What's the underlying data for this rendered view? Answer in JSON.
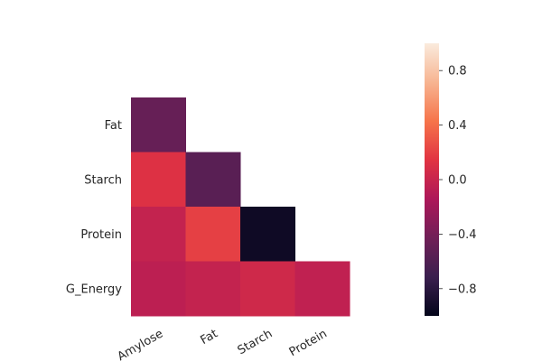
{
  "chart_data": {
    "type": "heatmap",
    "mask": "upper-triangle",
    "x_categories": [
      "Amylose",
      "Fat",
      "Starch",
      "Protein"
    ],
    "y_categories": [
      "Fat",
      "Starch",
      "Protein",
      "G_Energy"
    ],
    "cells": [
      {
        "x": "Amylose",
        "y": "Fat",
        "value": -0.48
      },
      {
        "x": "Amylose",
        "y": "Starch",
        "value": 0.12
      },
      {
        "x": "Fat",
        "y": "Starch",
        "value": -0.55
      },
      {
        "x": "Amylose",
        "y": "Protein",
        "value": -0.02
      },
      {
        "x": "Fat",
        "y": "Protein",
        "value": 0.2
      },
      {
        "x": "Starch",
        "y": "Protein",
        "value": -0.94
      },
      {
        "x": "Amylose",
        "y": "G_Energy",
        "value": -0.06
      },
      {
        "x": "Fat",
        "y": "G_Energy",
        "value": -0.02
      },
      {
        "x": "Starch",
        "y": "G_Energy",
        "value": 0.04
      },
      {
        "x": "Protein",
        "y": "G_Energy",
        "value": -0.04
      }
    ],
    "colorbar": {
      "min": -1,
      "max": 1,
      "ticks": [
        {
          "value": 0.8,
          "label": "0.8"
        },
        {
          "value": 0.4,
          "label": "0.4"
        },
        {
          "value": 0.0,
          "label": "0.0"
        },
        {
          "value": -0.4,
          "label": "−0.4"
        },
        {
          "value": -0.8,
          "label": "−0.8"
        }
      ],
      "colormap_stops": [
        "#03051a",
        "#3b1f4f",
        "#701f57",
        "#ad1759",
        "#e13342",
        "#f6744a",
        "#f7b491",
        "#faebdd"
      ]
    },
    "title": "",
    "xlabel": "",
    "ylabel": ""
  }
}
